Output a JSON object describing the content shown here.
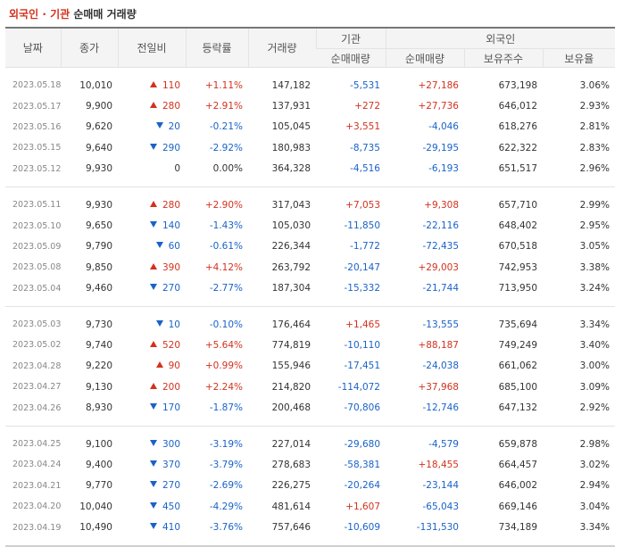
{
  "title": {
    "foreign": "외국인",
    "sep": "·",
    "inst": "기관",
    "rest": "순매매 거래량"
  },
  "headers": {
    "date": "날짜",
    "close": "종가",
    "change": "전일비",
    "rate": "등락률",
    "volume": "거래량",
    "inst": "기관",
    "foreign": "외국인",
    "inst_net": "순매매량",
    "foreign_net": "순매매량",
    "foreign_holdings": "보유주수",
    "foreign_ratio": "보유율"
  },
  "colors": {
    "up": "#d2321e",
    "down": "#1a62c8"
  },
  "groups": [
    [
      {
        "date": "2023.05.18",
        "close": "10,010",
        "dir": "up",
        "change": "110",
        "rate": "+1.11%",
        "volume": "147,182",
        "inst": "-5,531",
        "foreign": "+27,186",
        "holdings": "673,198",
        "ratio": "3.06%"
      },
      {
        "date": "2023.05.17",
        "close": "9,900",
        "dir": "up",
        "change": "280",
        "rate": "+2.91%",
        "volume": "137,931",
        "inst": "+272",
        "foreign": "+27,736",
        "holdings": "646,012",
        "ratio": "2.93%"
      },
      {
        "date": "2023.05.16",
        "close": "9,620",
        "dir": "down",
        "change": "20",
        "rate": "-0.21%",
        "volume": "105,045",
        "inst": "+3,551",
        "foreign": "-4,046",
        "holdings": "618,276",
        "ratio": "2.81%"
      },
      {
        "date": "2023.05.15",
        "close": "9,640",
        "dir": "down",
        "change": "290",
        "rate": "-2.92%",
        "volume": "180,983",
        "inst": "-8,735",
        "foreign": "-29,195",
        "holdings": "622,322",
        "ratio": "2.83%"
      },
      {
        "date": "2023.05.12",
        "close": "9,930",
        "dir": "none",
        "change": "0",
        "rate": "0.00%",
        "volume": "364,328",
        "inst": "-4,516",
        "foreign": "-6,193",
        "holdings": "651,517",
        "ratio": "2.96%"
      }
    ],
    [
      {
        "date": "2023.05.11",
        "close": "9,930",
        "dir": "up",
        "change": "280",
        "rate": "+2.90%",
        "volume": "317,043",
        "inst": "+7,053",
        "foreign": "+9,308",
        "holdings": "657,710",
        "ratio": "2.99%"
      },
      {
        "date": "2023.05.10",
        "close": "9,650",
        "dir": "down",
        "change": "140",
        "rate": "-1.43%",
        "volume": "105,030",
        "inst": "-11,850",
        "foreign": "-22,116",
        "holdings": "648,402",
        "ratio": "2.95%"
      },
      {
        "date": "2023.05.09",
        "close": "9,790",
        "dir": "down",
        "change": "60",
        "rate": "-0.61%",
        "volume": "226,344",
        "inst": "-1,772",
        "foreign": "-72,435",
        "holdings": "670,518",
        "ratio": "3.05%"
      },
      {
        "date": "2023.05.08",
        "close": "9,850",
        "dir": "up",
        "change": "390",
        "rate": "+4.12%",
        "volume": "263,792",
        "inst": "-20,147",
        "foreign": "+29,003",
        "holdings": "742,953",
        "ratio": "3.38%"
      },
      {
        "date": "2023.05.04",
        "close": "9,460",
        "dir": "down",
        "change": "270",
        "rate": "-2.77%",
        "volume": "187,304",
        "inst": "-15,332",
        "foreign": "-21,744",
        "holdings": "713,950",
        "ratio": "3.24%"
      }
    ],
    [
      {
        "date": "2023.05.03",
        "close": "9,730",
        "dir": "down",
        "change": "10",
        "rate": "-0.10%",
        "volume": "176,464",
        "inst": "+1,465",
        "foreign": "-13,555",
        "holdings": "735,694",
        "ratio": "3.34%"
      },
      {
        "date": "2023.05.02",
        "close": "9,740",
        "dir": "up",
        "change": "520",
        "rate": "+5.64%",
        "volume": "774,819",
        "inst": "-10,110",
        "foreign": "+88,187",
        "holdings": "749,249",
        "ratio": "3.40%"
      },
      {
        "date": "2023.04.28",
        "close": "9,220",
        "dir": "up",
        "change": "90",
        "rate": "+0.99%",
        "volume": "155,946",
        "inst": "-17,451",
        "foreign": "-24,038",
        "holdings": "661,062",
        "ratio": "3.00%"
      },
      {
        "date": "2023.04.27",
        "close": "9,130",
        "dir": "up",
        "change": "200",
        "rate": "+2.24%",
        "volume": "214,820",
        "inst": "-114,072",
        "foreign": "+37,968",
        "holdings": "685,100",
        "ratio": "3.09%"
      },
      {
        "date": "2023.04.26",
        "close": "8,930",
        "dir": "down",
        "change": "170",
        "rate": "-1.87%",
        "volume": "200,468",
        "inst": "-70,806",
        "foreign": "-12,746",
        "holdings": "647,132",
        "ratio": "2.92%"
      }
    ],
    [
      {
        "date": "2023.04.25",
        "close": "9,100",
        "dir": "down",
        "change": "300",
        "rate": "-3.19%",
        "volume": "227,014",
        "inst": "-29,680",
        "foreign": "-4,579",
        "holdings": "659,878",
        "ratio": "2.98%"
      },
      {
        "date": "2023.04.24",
        "close": "9,400",
        "dir": "down",
        "change": "370",
        "rate": "-3.79%",
        "volume": "278,683",
        "inst": "-58,381",
        "foreign": "+18,455",
        "holdings": "664,457",
        "ratio": "3.02%"
      },
      {
        "date": "2023.04.21",
        "close": "9,770",
        "dir": "down",
        "change": "270",
        "rate": "-2.69%",
        "volume": "226,275",
        "inst": "-20,264",
        "foreign": "-23,144",
        "holdings": "646,002",
        "ratio": "2.94%"
      },
      {
        "date": "2023.04.20",
        "close": "10,040",
        "dir": "down",
        "change": "450",
        "rate": "-4.29%",
        "volume": "481,614",
        "inst": "+1,607",
        "foreign": "-65,043",
        "holdings": "669,146",
        "ratio": "3.04%"
      },
      {
        "date": "2023.04.19",
        "close": "10,490",
        "dir": "down",
        "change": "410",
        "rate": "-3.76%",
        "volume": "757,646",
        "inst": "-10,609",
        "foreign": "-131,530",
        "holdings": "734,189",
        "ratio": "3.34%"
      }
    ]
  ]
}
